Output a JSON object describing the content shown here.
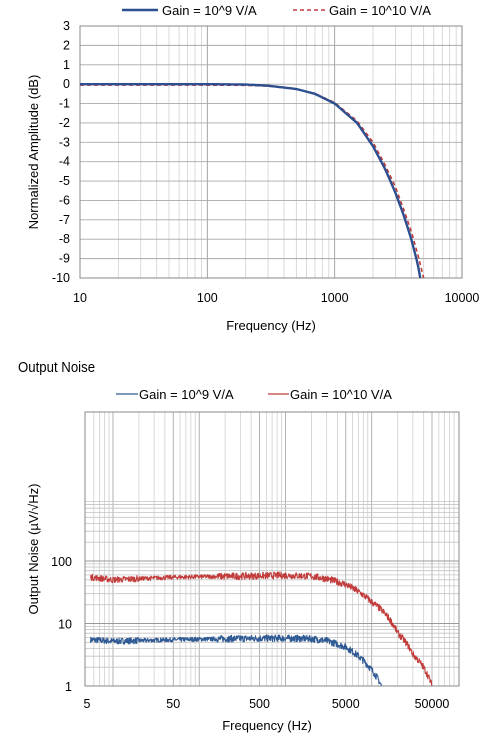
{
  "section_title": "Output Noise",
  "chart_data": [
    {
      "type": "line",
      "title": "",
      "xlabel": "Frequency (Hz)",
      "ylabel": "Normalized Amplitude (dB)",
      "xscale": "log",
      "xlim": [
        10,
        10000
      ],
      "ylim": [
        -10,
        3
      ],
      "xticks": [
        "10",
        "100",
        "1000",
        "10000"
      ],
      "yticks": [
        "3",
        "2",
        "1",
        "0",
        "-1",
        "-2",
        "-3",
        "-4",
        "-5",
        "-6",
        "-7",
        "-8",
        "-9",
        "-10"
      ],
      "grid": true,
      "legend": "top",
      "series": [
        {
          "name": "Gain = 10^9 V/A",
          "color": "#2e4f8f",
          "style": "solid",
          "x": [
            10,
            50,
            100,
            200,
            300,
            500,
            700,
            1000,
            1500,
            2000,
            2500,
            3000,
            3500,
            4000,
            4500,
            4700
          ],
          "values": [
            0,
            0,
            0,
            -0.02,
            -0.08,
            -0.25,
            -0.5,
            -1.0,
            -2.0,
            -3.2,
            -4.4,
            -5.6,
            -6.8,
            -8.0,
            -9.3,
            -10
          ]
        },
        {
          "name": "Gain = 10^10 V/A",
          "color": "#c0393b",
          "style": "dashed",
          "x": [
            10,
            50,
            100,
            200,
            300,
            500,
            700,
            1000,
            1500,
            2000,
            2500,
            3000,
            3500,
            4000,
            4500,
            5000
          ],
          "values": [
            -0.05,
            -0.05,
            -0.05,
            -0.06,
            -0.1,
            -0.25,
            -0.48,
            -0.95,
            -1.9,
            -3.0,
            -4.2,
            -5.3,
            -6.5,
            -7.6,
            -8.8,
            -10
          ]
        }
      ]
    },
    {
      "type": "line",
      "title": "",
      "xlabel": "Frequency (Hz)",
      "ylabel": "Output Noise (µV/√Hz)",
      "xscale": "log",
      "yscale": "log",
      "xlim": [
        5,
        70000
      ],
      "ylim": [
        1,
        110
      ],
      "xticks": [
        "5",
        "50",
        "500",
        "5000",
        "50000"
      ],
      "yticks": [
        "100",
        "10",
        "1"
      ],
      "grid": true,
      "legend": "top",
      "series": [
        {
          "name": "Gain = 10^9 V/A",
          "color": "#2f5a94",
          "style": "solid",
          "x": [
            5.5,
            10,
            50,
            100,
            500,
            1000,
            2000,
            3000,
            5000,
            7000,
            10000,
            13000
          ],
          "values": [
            5.5,
            5.2,
            5.5,
            5.6,
            5.8,
            5.8,
            5.7,
            5.3,
            4.2,
            3.0,
            1.8,
            1.0
          ]
        },
        {
          "name": "Gain = 10^10 V/A",
          "color": "#c23c3c",
          "style": "solid",
          "x": [
            5.5,
            10,
            50,
            100,
            500,
            1000,
            2000,
            3000,
            5000,
            10000,
            20000,
            30000,
            50000
          ],
          "values": [
            55,
            50,
            55,
            56,
            58,
            59,
            57,
            52,
            42,
            22,
            7,
            3.2,
            1.0
          ]
        }
      ]
    }
  ]
}
